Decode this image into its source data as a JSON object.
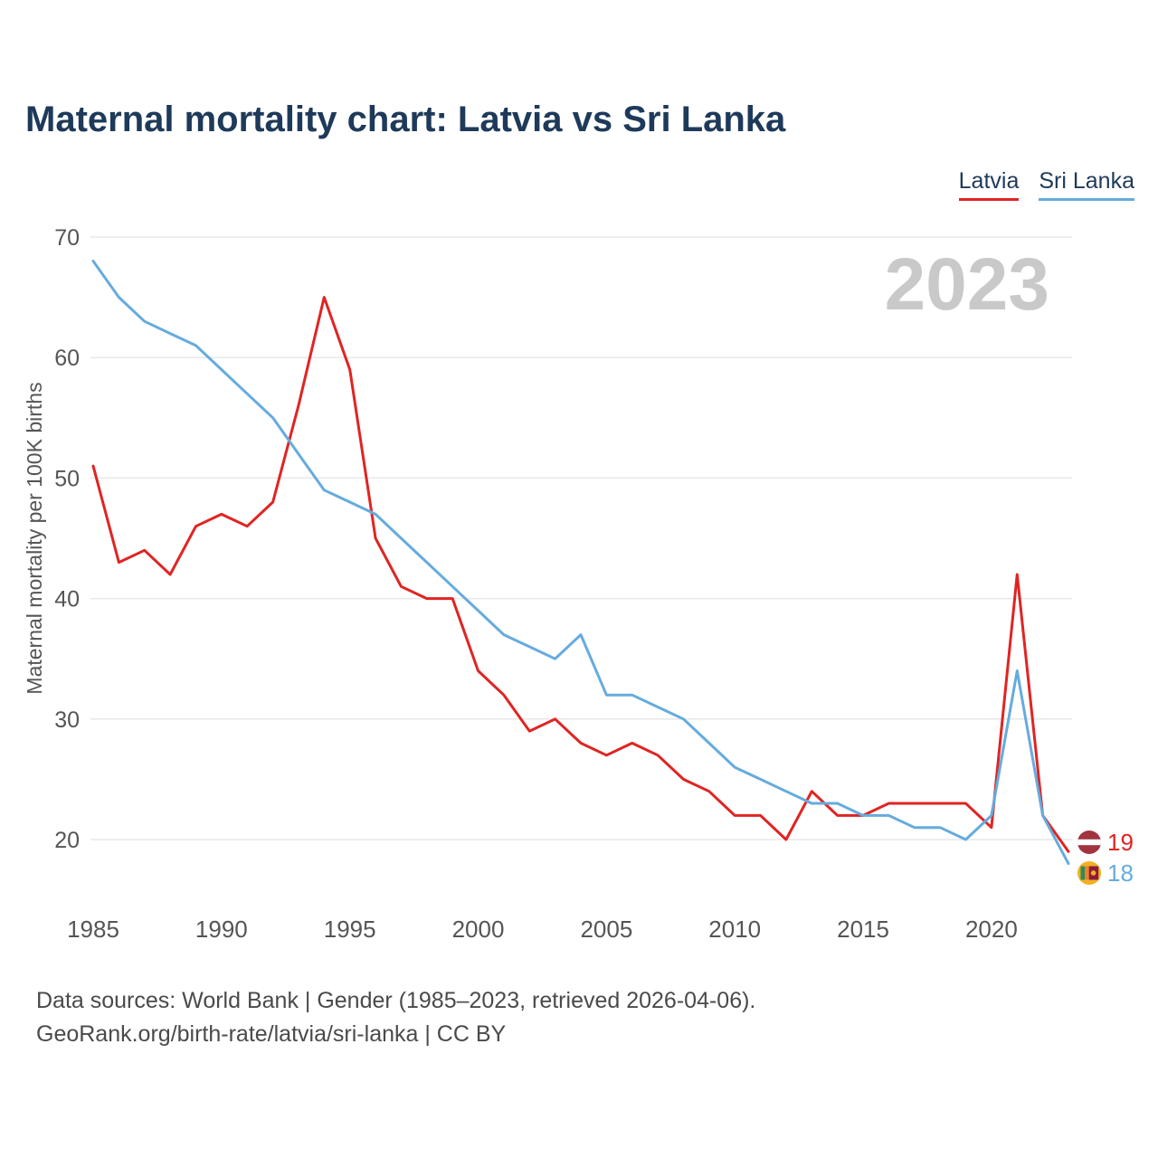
{
  "title": "Maternal mortality chart: Latvia vs Sri Lanka",
  "watermark": "2023",
  "legend": [
    {
      "label": "Latvia",
      "color": "#e02422"
    },
    {
      "label": "Sri Lanka",
      "color": "#66abde"
    }
  ],
  "footer": {
    "line1": "Data sources: World Bank | Gender (1985–2023, retrieved 2026-04-06).",
    "line2": "GeoRank.org/birth-rate/latvia/sri-lanka | CC BY"
  },
  "chart_data": {
    "type": "line",
    "title": "Maternal mortality chart: Latvia vs Sri Lanka",
    "ylabel": "Maternal mortality per 100K births",
    "xlabel": "",
    "ylim": [
      20,
      70
    ],
    "grid": "horizontal",
    "legend_position": "top-right",
    "xticks": [
      1985,
      1990,
      1995,
      2000,
      2005,
      2010,
      2015,
      2020
    ],
    "yticks": [
      20,
      30,
      40,
      50,
      60,
      70
    ],
    "x": [
      1985,
      1986,
      1987,
      1988,
      1989,
      1990,
      1991,
      1992,
      1993,
      1994,
      1995,
      1996,
      1997,
      1998,
      1999,
      2000,
      2001,
      2002,
      2003,
      2004,
      2005,
      2006,
      2007,
      2008,
      2009,
      2010,
      2011,
      2012,
      2013,
      2014,
      2015,
      2016,
      2017,
      2018,
      2019,
      2020,
      2021,
      2022,
      2023
    ],
    "series": [
      {
        "name": "Latvia",
        "color": "#e02422",
        "flag": "latvia",
        "end_value": 19,
        "values": [
          51,
          43,
          44,
          42,
          46,
          47,
          46,
          48,
          56,
          65,
          59,
          45,
          41,
          40,
          40,
          34,
          32,
          29,
          30,
          28,
          27,
          28,
          27,
          25,
          24,
          22,
          22,
          20,
          24,
          22,
          22,
          23,
          23,
          23,
          23,
          21,
          42,
          22,
          19
        ]
      },
      {
        "name": "Sri Lanka",
        "color": "#66abde",
        "flag": "sri-lanka",
        "end_value": 18,
        "values": [
          68,
          65,
          63,
          62,
          61,
          59,
          57,
          55,
          52,
          49,
          48,
          47,
          45,
          43,
          41,
          39,
          37,
          36,
          35,
          37,
          32,
          32,
          31,
          30,
          28,
          26,
          25,
          24,
          23,
          23,
          22,
          22,
          21,
          21,
          20,
          22,
          34,
          22,
          18
        ]
      }
    ]
  }
}
